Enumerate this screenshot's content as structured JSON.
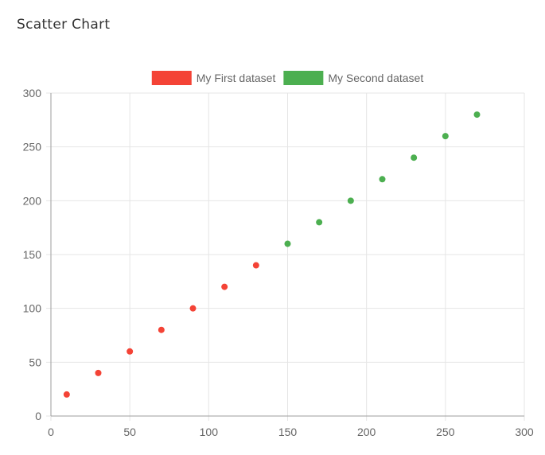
{
  "page": {
    "title": "Scatter Chart"
  },
  "chart_data": {
    "type": "scatter",
    "title": "",
    "xlabel": "",
    "ylabel": "",
    "xlim": [
      0,
      300
    ],
    "ylim": [
      0,
      300
    ],
    "x_ticks": [
      0,
      50,
      100,
      150,
      200,
      250,
      300
    ],
    "y_ticks": [
      0,
      50,
      100,
      150,
      200,
      250,
      300
    ],
    "grid": true,
    "legend_position": "top-center",
    "series": [
      {
        "name": "My First dataset",
        "color": "#f44336",
        "points": [
          {
            "x": 10,
            "y": 20
          },
          {
            "x": 30,
            "y": 40
          },
          {
            "x": 50,
            "y": 60
          },
          {
            "x": 70,
            "y": 80
          },
          {
            "x": 90,
            "y": 100
          },
          {
            "x": 110,
            "y": 120
          },
          {
            "x": 130,
            "y": 140
          }
        ]
      },
      {
        "name": "My Second dataset",
        "color": "#4caf50",
        "points": [
          {
            "x": 150,
            "y": 160
          },
          {
            "x": 170,
            "y": 180
          },
          {
            "x": 190,
            "y": 200
          },
          {
            "x": 210,
            "y": 220
          },
          {
            "x": 230,
            "y": 240
          },
          {
            "x": 250,
            "y": 260
          },
          {
            "x": 270,
            "y": 280
          }
        ]
      }
    ]
  }
}
